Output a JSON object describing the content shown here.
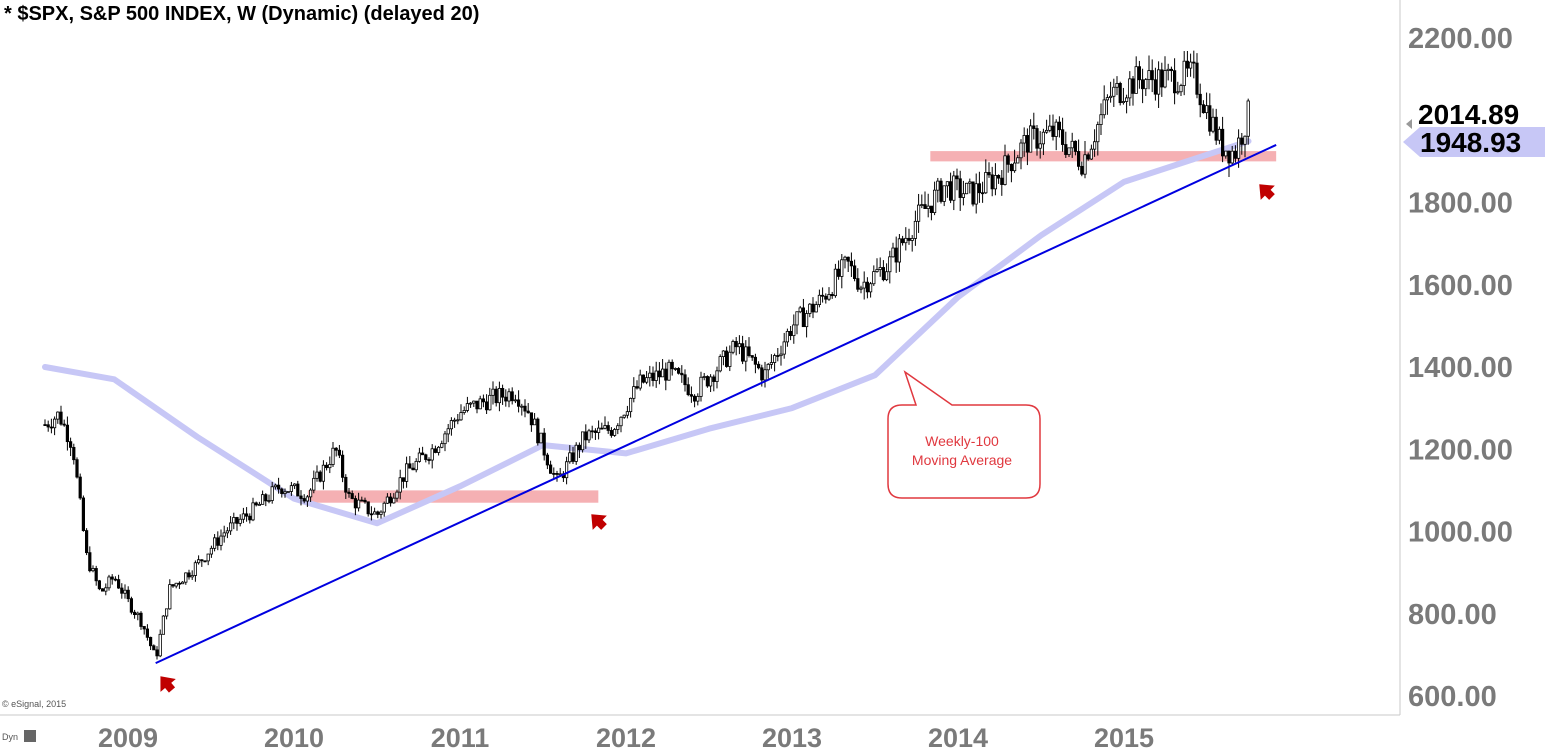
{
  "chart_data": {
    "type": "candlestick",
    "title": "* $SPX, S&P 500 INDEX, W (Dynamic) (delayed 20)",
    "interval": "W",
    "ylim": [
      600,
      2200
    ],
    "y_ticks": [
      "2200.00",
      "1800.00",
      "1600.00",
      "1400.00",
      "1200.00",
      "1000.00",
      "800.00",
      "600.00"
    ],
    "x_ticks": [
      "2009",
      "2010",
      "2011",
      "2012",
      "2013",
      "2014",
      "2015"
    ],
    "grid": false,
    "price_labels": {
      "last": "2014.89",
      "moving_average": "1948.93"
    },
    "series": [
      {
        "name": "price",
        "kind": "weekly-candles",
        "points": [
          [
            "2008-07",
            1260
          ],
          [
            "2008-08",
            1285
          ],
          [
            "2008-09",
            1210
          ],
          [
            "2008-10",
            940
          ],
          [
            "2008-11",
            850
          ],
          [
            "2008-12",
            890
          ],
          [
            "2009-01",
            830
          ],
          [
            "2009-02",
            780
          ],
          [
            "2009-03",
            690
          ],
          [
            "2009-04",
            860
          ],
          [
            "2009-06",
            920
          ],
          [
            "2009-08",
            1000
          ],
          [
            "2009-10",
            1050
          ],
          [
            "2009-12",
            1110
          ],
          [
            "2010-02",
            1090
          ],
          [
            "2010-04",
            1200
          ],
          [
            "2010-05",
            1080
          ],
          [
            "2010-07",
            1040
          ],
          [
            "2010-09",
            1140
          ],
          [
            "2010-11",
            1200
          ],
          [
            "2011-01",
            1290
          ],
          [
            "2011-03",
            1320
          ],
          [
            "2011-05",
            1340
          ],
          [
            "2011-06",
            1290
          ],
          [
            "2011-08",
            1120
          ],
          [
            "2011-10",
            1230
          ],
          [
            "2011-12",
            1250
          ],
          [
            "2012-02",
            1360
          ],
          [
            "2012-04",
            1390
          ],
          [
            "2012-06",
            1340
          ],
          [
            "2012-09",
            1450
          ],
          [
            "2012-11",
            1380
          ],
          [
            "2013-01",
            1500
          ],
          [
            "2013-03",
            1560
          ],
          [
            "2013-05",
            1650
          ],
          [
            "2013-06",
            1600
          ],
          [
            "2013-08",
            1650
          ],
          [
            "2013-10",
            1760
          ],
          [
            "2013-12",
            1840
          ],
          [
            "2014-02",
            1820
          ],
          [
            "2014-04",
            1870
          ],
          [
            "2014-06",
            1950
          ],
          [
            "2014-08",
            1970
          ],
          [
            "2014-10",
            1900
          ],
          [
            "2014-12",
            2060
          ],
          [
            "2015-02",
            2100
          ],
          [
            "2015-04",
            2100
          ],
          [
            "2015-06",
            2110
          ],
          [
            "2015-08",
            1940
          ],
          [
            "2015-09",
            1920
          ],
          [
            "2015-10",
            2015
          ]
        ]
      },
      {
        "name": "Weekly-100 Moving Average",
        "kind": "line",
        "points": [
          [
            "2008-07",
            1400
          ],
          [
            "2008-12",
            1370
          ],
          [
            "2009-06",
            1230
          ],
          [
            "2010-01",
            1080
          ],
          [
            "2010-07",
            1020
          ],
          [
            "2011-01",
            1110
          ],
          [
            "2011-07",
            1210
          ],
          [
            "2012-01",
            1190
          ],
          [
            "2012-07",
            1250
          ],
          [
            "2013-01",
            1300
          ],
          [
            "2013-07",
            1380
          ],
          [
            "2014-01",
            1570
          ],
          [
            "2014-07",
            1720
          ],
          [
            "2015-01",
            1850
          ],
          [
            "2015-10",
            1949
          ]
        ]
      },
      {
        "name": "trendline",
        "kind": "line",
        "points": [
          [
            "2009-03",
            680
          ],
          [
            "2015-12",
            1940
          ]
        ]
      }
    ],
    "support_zones": [
      {
        "from": "2010-02",
        "to": "2011-11",
        "low": 1070,
        "high": 1100
      },
      {
        "from": "2013-11",
        "to": "2015-12",
        "low": 1900,
        "high": 1925
      }
    ],
    "annotations": [
      {
        "text": "Weekly-100\nMoving Average",
        "type": "callout"
      }
    ],
    "watermark": "© eSignal, 2015",
    "footer_label": "Dyn"
  }
}
